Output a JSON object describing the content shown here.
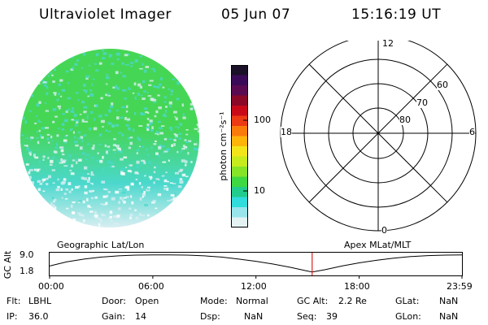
{
  "header": {
    "instrument": "Ultraviolet Imager",
    "date": "05 Jun 07",
    "time": "15:16:19 UT"
  },
  "image_colors": {
    "green": "#46d656",
    "cyan": "#4ad8cc",
    "pale": "#d8eef2"
  },
  "colorbar": {
    "unit_label": "photon cm⁻²s⁻¹",
    "tick_labels": [
      "100",
      "10"
    ],
    "colors": [
      "#1a1028",
      "#3a0a58",
      "#5a0a50",
      "#8a0828",
      "#c80a18",
      "#ec3a14",
      "#fa7a0a",
      "#ffb40a",
      "#f2e61a",
      "#c6ec1e",
      "#86e428",
      "#3ed842",
      "#22cc8c",
      "#30dcdc",
      "#98e6ec",
      "#e4f2f4"
    ]
  },
  "polar_plot": {
    "mlt_labels": {
      "top": "12",
      "left": "18",
      "right": "6",
      "bottom": "0"
    },
    "lat_labels": [
      "60",
      "70",
      "80"
    ]
  },
  "timeline": {
    "ylabel": "GC Alt",
    "y_ticks": [
      "9.0",
      "1.8"
    ],
    "left_title": "Geographic Lat/Lon",
    "right_title": "Apex MLat/MLT",
    "x_ticks": [
      "00:00",
      "06:00",
      "12:00",
      "18:00",
      "23:59"
    ],
    "marker_color": "#e02020"
  },
  "chart_data": {
    "type": "line",
    "x_hours": [
      0,
      1,
      2,
      3,
      4,
      5,
      6,
      7,
      8,
      9,
      10,
      11,
      12,
      13,
      14,
      15,
      15.27,
      16,
      17,
      18,
      19,
      20,
      21,
      22,
      23,
      23.98
    ],
    "gc_alt_re": [
      4.6,
      6.3,
      7.4,
      8.2,
      8.7,
      9.0,
      9.1,
      9.1,
      9.0,
      8.7,
      8.2,
      7.4,
      6.5,
      5.4,
      4.1,
      2.6,
      2.2,
      3.1,
      4.6,
      5.9,
      6.9,
      7.8,
      8.4,
      8.8,
      9.0,
      9.1
    ],
    "xlim": [
      0,
      23.98
    ],
    "ylim": [
      1.8,
      9.0
    ],
    "current_time_hours": 15.27
  },
  "status": {
    "flt_label": "Flt:",
    "flt_value": "LBHL",
    "ip_label": "IP:",
    "ip_value": "36.0",
    "door_label": "Door:",
    "door_value": "Open",
    "gain_label": "Gain:",
    "gain_value": "14",
    "mode_label": "Mode:",
    "mode_value": "Normal",
    "dsp_label": "Dsp:",
    "dsp_value": "NaN",
    "gcalt_label": "GC Alt:",
    "gcalt_value": "2.2 Re",
    "seq_label": "Seq:",
    "seq_value": "39",
    "glat_label": "GLat:",
    "glat_value": "NaN",
    "glon_label": "GLon:",
    "glon_value": "NaN"
  }
}
